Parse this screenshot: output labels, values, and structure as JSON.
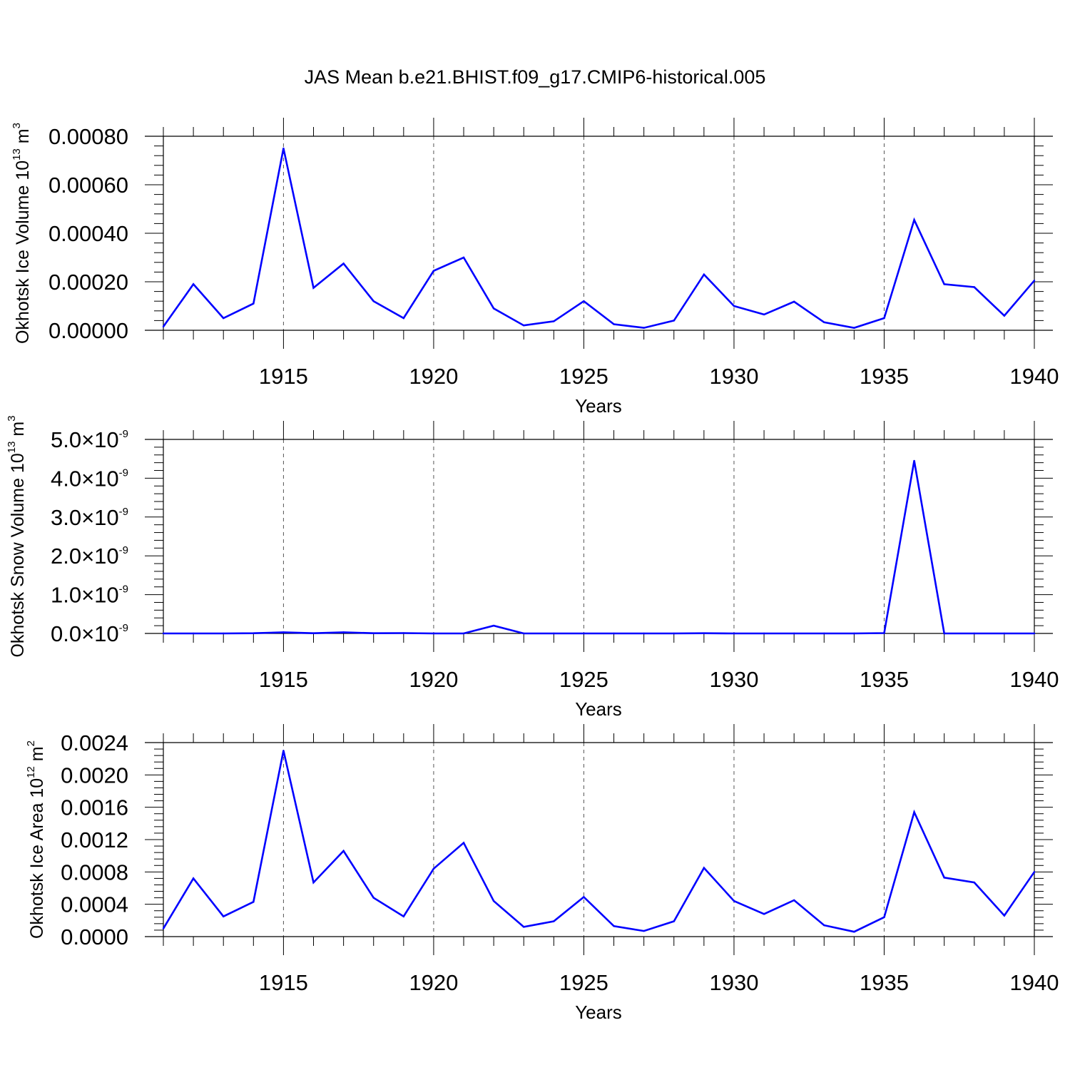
{
  "title": "JAS Mean b.e21.BHIST.f09_g17.CMIP6-historical.005",
  "chart_data": [
    {
      "type": "line",
      "name": "ice-volume",
      "ylabel_main": "Okhotsk Ice Volume 10",
      "ylabel_exp": "13",
      "ylabel_unit": " m",
      "ylabel_unit_exp": "3",
      "xlabel": "Years",
      "xlim": [
        1911,
        1940
      ],
      "ylim": [
        0,
        0.0008
      ],
      "yticks": [
        0,
        0.0002,
        0.0004,
        0.0006,
        0.0008
      ],
      "yticklabels": [
        "0.00000",
        "0.00020",
        "0.00040",
        "0.00060",
        "0.00080"
      ],
      "ytick_exponent": "",
      "xticks": [
        1915,
        1920,
        1925,
        1930,
        1935,
        1940
      ],
      "xticklabels": [
        "1915",
        "1920",
        "1925",
        "1930",
        "1935",
        "1940"
      ],
      "color": "#0000ff",
      "x": [
        1911,
        1912,
        1913,
        1914,
        1915,
        1916,
        1917,
        1918,
        1919,
        1920,
        1921,
        1922,
        1923,
        1924,
        1925,
        1926,
        1927,
        1928,
        1929,
        1930,
        1931,
        1932,
        1933,
        1934,
        1935,
        1936,
        1937,
        1938,
        1939,
        1940
      ],
      "values": [
        1.5e-05,
        0.00019,
        5e-05,
        0.00011,
        0.00075,
        0.000175,
        0.000275,
        0.00012,
        5e-05,
        0.000245,
        0.0003,
        9e-05,
        2e-05,
        3.7e-05,
        0.00012,
        2.5e-05,
        1e-05,
        4e-05,
        0.00023,
        0.0001,
        6.5e-05,
        0.000118,
        3.3e-05,
        1e-05,
        5e-05,
        0.000455,
        0.00019,
        0.000178,
        6e-05,
        0.000205
      ]
    },
    {
      "type": "line",
      "name": "snow-volume",
      "ylabel_main": "Okhotsk Snow Volume 10",
      "ylabel_exp": "13",
      "ylabel_unit": " m",
      "ylabel_unit_exp": "3",
      "xlabel": "Years",
      "xlim": [
        1911,
        1940
      ],
      "ylim": [
        0,
        5e-09
      ],
      "yticks": [
        0,
        1e-09,
        2e-09,
        3e-09,
        4e-09,
        5e-09
      ],
      "yticklabels": [
        "0.0×10",
        "1.0×10",
        "2.0×10",
        "3.0×10",
        "4.0×10",
        "5.0×10"
      ],
      "ytick_exponent": "-9",
      "xticks": [
        1915,
        1920,
        1925,
        1930,
        1935,
        1940
      ],
      "xticklabels": [
        "1915",
        "1920",
        "1925",
        "1930",
        "1935",
        "1940"
      ],
      "color": "#0000ff",
      "x": [
        1911,
        1912,
        1913,
        1914,
        1915,
        1916,
        1917,
        1918,
        1919,
        1920,
        1921,
        1922,
        1923,
        1924,
        1925,
        1926,
        1927,
        1928,
        1929,
        1930,
        1931,
        1932,
        1933,
        1934,
        1935,
        1936,
        1937,
        1938,
        1939,
        1940
      ],
      "values": [
        0,
        0,
        0,
        5e-12,
        3e-11,
        5e-12,
        3e-11,
        5e-12,
        1e-11,
        0,
        0,
        2e-10,
        0,
        0,
        0,
        0,
        0,
        0,
        5e-12,
        0,
        0,
        0,
        0,
        0,
        1e-11,
        4.45e-09,
        0,
        0,
        0,
        0
      ]
    },
    {
      "type": "line",
      "name": "ice-area",
      "ylabel_main": "Okhotsk Ice Area 10",
      "ylabel_exp": "12",
      "ylabel_unit": " m",
      "ylabel_unit_exp": "2",
      "xlabel": "Years",
      "xlim": [
        1911,
        1940
      ],
      "ylim": [
        0,
        0.0024
      ],
      "yticks": [
        0,
        0.0004,
        0.0008,
        0.0012,
        0.0016,
        0.002,
        0.0024
      ],
      "yticklabels": [
        "0.0000",
        "0.0004",
        "0.0008",
        "0.0012",
        "0.0016",
        "0.0020",
        "0.0024"
      ],
      "ytick_exponent": "",
      "xticks": [
        1915,
        1920,
        1925,
        1930,
        1935,
        1940
      ],
      "xticklabels": [
        "1915",
        "1920",
        "1925",
        "1930",
        "1935",
        "1940"
      ],
      "color": "#0000ff",
      "x": [
        1911,
        1912,
        1913,
        1914,
        1915,
        1916,
        1917,
        1918,
        1919,
        1920,
        1921,
        1922,
        1923,
        1924,
        1925,
        1926,
        1927,
        1928,
        1929,
        1930,
        1931,
        1932,
        1933,
        1934,
        1935,
        1936,
        1937,
        1938,
        1939,
        1940
      ],
      "values": [
        0.0001,
        0.00072,
        0.00025,
        0.00043,
        0.0023,
        0.00067,
        0.00106,
        0.00048,
        0.00025,
        0.00084,
        0.00116,
        0.00044,
        0.00012,
        0.00019,
        0.00049,
        0.00013,
        7e-05,
        0.00019,
        0.00085,
        0.00044,
        0.00028,
        0.00045,
        0.00014,
        6e-05,
        0.00024,
        0.00154,
        0.00073,
        0.00067,
        0.00026,
        0.0008
      ]
    }
  ]
}
